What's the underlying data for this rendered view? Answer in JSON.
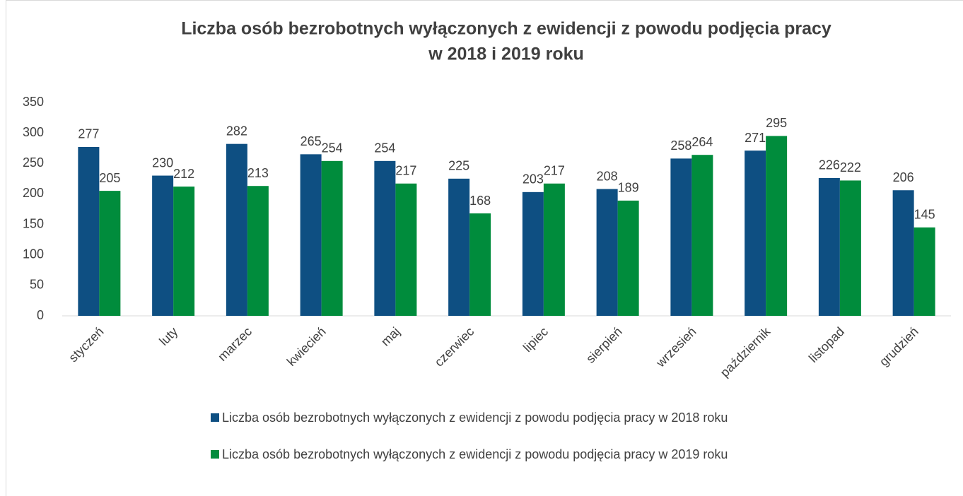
{
  "chart_data": {
    "type": "bar",
    "title": [
      "Liczba osób bezrobotnych wyłączonych z ewidencji z powodu podjęcia pracy",
      "w 2018 i 2019 roku"
    ],
    "categories": [
      "styczeń",
      "luty",
      "marzec",
      "kwiecień",
      "maj",
      "czerwiec",
      "lipiec",
      "sierpień",
      "wrzesień",
      "październik",
      "listopad",
      "grudzień"
    ],
    "series": [
      {
        "name": "Liczba osób bezrobotnych wyłączonych z ewidencji z powodu podjęcia pracy w 2018 roku",
        "color": "#0e4f82",
        "values": [
          277,
          230,
          282,
          265,
          254,
          225,
          203,
          208,
          258,
          271,
          226,
          206
        ]
      },
      {
        "name": "Liczba osób bezrobotnych wyłączonych z ewidencji z powodu podjęcia pracy w 2019 roku",
        "color": "#008c3c",
        "values": [
          205,
          212,
          213,
          254,
          217,
          168,
          217,
          189,
          264,
          295,
          222,
          145
        ]
      }
    ],
    "ylim": [
      0,
      350
    ],
    "yticks": [
      0,
      50,
      100,
      150,
      200,
      250,
      300,
      350
    ],
    "grid": false,
    "legend": "bottom"
  }
}
